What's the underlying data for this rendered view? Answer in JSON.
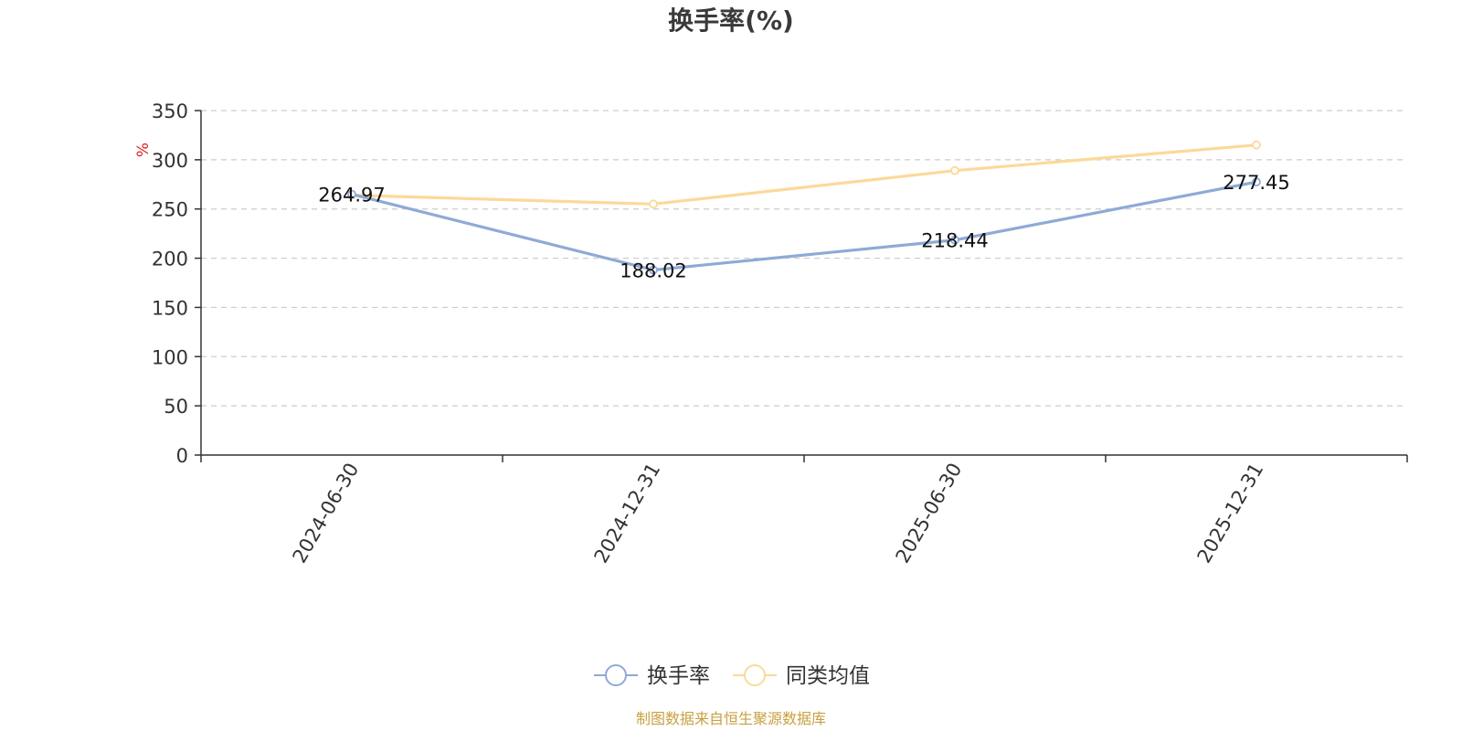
{
  "chart_data": {
    "type": "line",
    "title": "换手率(%)",
    "unit_label": "%",
    "x": [
      "2024-06-30",
      "2024-12-31",
      "2025-06-30",
      "2025-12-31"
    ],
    "ylim": [
      0,
      350
    ],
    "yticks": [
      0,
      50,
      100,
      150,
      200,
      250,
      300,
      350
    ],
    "grid": true,
    "legend_position": "bottom",
    "series": [
      {
        "name": "换手率",
        "values": [
          264.97,
          188.02,
          218.44,
          277.45
        ],
        "color": "#8eaad6",
        "data_labels": [
          "264.97",
          "188.02",
          "218.44",
          "277.45"
        ]
      },
      {
        "name": "同类均值",
        "values": [
          264,
          255,
          289,
          315
        ],
        "color": "#fcd99a"
      }
    ]
  },
  "colors": {
    "axis": "#333333",
    "grid": "#cccccc",
    "unit": "#e02020",
    "source": "#c8a040"
  },
  "source_note": "制图数据来自恒生聚源数据库"
}
